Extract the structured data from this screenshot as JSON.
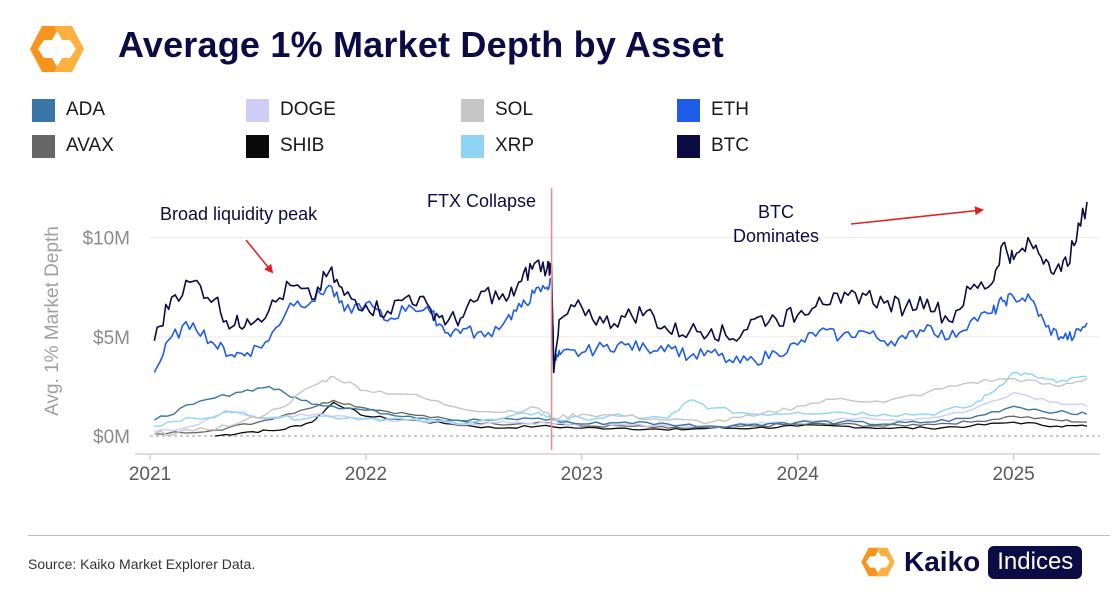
{
  "header": {
    "title": "Average 1% Market Depth by Asset"
  },
  "legend": [
    {
      "label": "ADA",
      "color": "#3a77a8"
    },
    {
      "label": "DOGE",
      "color": "#cfcdf6"
    },
    {
      "label": "SOL",
      "color": "#c6c6c6"
    },
    {
      "label": "ETH",
      "color": "#1f5ce8"
    },
    {
      "label": "AVAX",
      "color": "#666666"
    },
    {
      "label": "SHIB",
      "color": "#0a0a0a"
    },
    {
      "label": "XRP",
      "color": "#8fd4f5"
    },
    {
      "label": "BTC",
      "color": "#0b0b45"
    }
  ],
  "footer": {
    "source": "Source: Kaiko Market Explorer Data.",
    "brand_name": "Kaiko",
    "brand_badge": "Indices"
  },
  "chart_data": {
    "type": "line",
    "ylabel": "Avg. 1% Market Depth",
    "xlabel": "",
    "ylim": [
      0,
      12000000
    ],
    "xlim": [
      2021.0,
      2025.4
    ],
    "y_ticks": [
      {
        "value": 0,
        "label": "$0M"
      },
      {
        "value": 5000000,
        "label": "$5M"
      },
      {
        "value": 10000000,
        "label": "$10M"
      }
    ],
    "x_ticks": [
      {
        "value": 2021,
        "label": "2021"
      },
      {
        "value": 2022,
        "label": "2022"
      },
      {
        "value": 2023,
        "label": "2023"
      },
      {
        "value": 2024,
        "label": "2024"
      },
      {
        "value": 2025,
        "label": "2025"
      }
    ],
    "grid": "horizontal",
    "legend_position": "top",
    "annotations": [
      {
        "text": "Broad liquidity peak",
        "color": "#0b0b45"
      },
      {
        "text": "FTX Collapse",
        "color": "#0b0b45"
      },
      {
        "text": "BTC",
        "color": "#0b0b45"
      },
      {
        "text": "Dominates",
        "color": "#0b0b45"
      }
    ],
    "event_line": {
      "x": 2022.86,
      "color": "#f08a8a"
    },
    "series": [
      {
        "name": "BTC",
        "color": "#0b0b45",
        "width": 1.6,
        "x": [
          2021.02,
          2021.1,
          2021.2,
          2021.3,
          2021.38,
          2021.45,
          2021.55,
          2021.65,
          2021.75,
          2021.83,
          2021.9,
          2022.0,
          2022.1,
          2022.2,
          2022.3,
          2022.38,
          2022.45,
          2022.55,
          2022.65,
          2022.72,
          2022.78,
          2022.84,
          2022.86,
          2022.87,
          2022.9,
          2023.0,
          2023.1,
          2023.2,
          2023.3,
          2023.4,
          2023.5,
          2023.6,
          2023.7,
          2023.8,
          2023.9,
          2024.0,
          2024.1,
          2024.2,
          2024.3,
          2024.4,
          2024.5,
          2024.6,
          2024.7,
          2024.8,
          2024.9,
          2024.95,
          2025.0,
          2025.08,
          2025.15,
          2025.22,
          2025.28,
          2025.34
        ],
        "y": [
          4800000,
          7000000,
          7800000,
          6900000,
          5500000,
          5900000,
          6300000,
          7600000,
          6900000,
          8300000,
          7100000,
          6600000,
          6300000,
          7100000,
          6400000,
          5800000,
          6000000,
          7300000,
          6800000,
          7800000,
          8700000,
          8500000,
          8600000,
          3200000,
          5900000,
          6500000,
          5700000,
          6000000,
          6300000,
          5300000,
          5300000,
          5400000,
          4900000,
          5900000,
          5900000,
          6100000,
          7000000,
          6700000,
          7200000,
          6700000,
          6500000,
          6900000,
          5800000,
          7400000,
          7700000,
          9700000,
          8900000,
          9700000,
          8900000,
          8300000,
          9600000,
          11800000
        ]
      },
      {
        "name": "ETH",
        "color": "#1f5ce8",
        "width": 1.6,
        "x": [
          2021.02,
          2021.1,
          2021.2,
          2021.3,
          2021.38,
          2021.45,
          2021.55,
          2021.65,
          2021.75,
          2021.83,
          2021.9,
          2022.0,
          2022.1,
          2022.2,
          2022.3,
          2022.38,
          2022.45,
          2022.55,
          2022.65,
          2022.72,
          2022.78,
          2022.84,
          2022.86,
          2022.87,
          2022.9,
          2023.0,
          2023.1,
          2023.2,
          2023.3,
          2023.4,
          2023.5,
          2023.6,
          2023.7,
          2023.8,
          2023.9,
          2024.0,
          2024.1,
          2024.2,
          2024.3,
          2024.4,
          2024.5,
          2024.6,
          2024.7,
          2024.8,
          2024.9,
          2024.95,
          2025.0,
          2025.08,
          2025.15,
          2025.22,
          2025.28,
          2025.34
        ],
        "y": [
          3200000,
          5000000,
          5700000,
          4600000,
          4100000,
          4200000,
          4800000,
          6700000,
          6800000,
          7600000,
          6300000,
          6700000,
          5800000,
          6600000,
          6200000,
          5200000,
          5400000,
          5000000,
          5900000,
          6500000,
          7200000,
          7500000,
          7800000,
          3700000,
          4100000,
          4200000,
          4500000,
          4600000,
          4400000,
          4600000,
          4000000,
          4200000,
          3700000,
          3800000,
          4200000,
          4600000,
          5300000,
          5000000,
          5300000,
          4800000,
          4900000,
          5600000,
          4900000,
          5800000,
          6200000,
          6800000,
          7000000,
          6900000,
          5500000,
          5000000,
          5000000,
          5700000
        ]
      },
      {
        "name": "SOL",
        "color": "#c6c6c6",
        "width": 1.4,
        "x": [
          2021.02,
          2021.2,
          2021.4,
          2021.6,
          2021.75,
          2021.85,
          2022.0,
          2022.2,
          2022.4,
          2022.6,
          2022.8,
          2022.87,
          2023.0,
          2023.2,
          2023.4,
          2023.6,
          2023.8,
          2024.0,
          2024.2,
          2024.4,
          2024.6,
          2024.8,
          2025.0,
          2025.2,
          2025.34
        ],
        "y": [
          100000,
          250000,
          600000,
          1400000,
          2500000,
          3000000,
          2300000,
          2100000,
          1500000,
          1200000,
          1400000,
          900000,
          1100000,
          1000000,
          800000,
          700000,
          1000000,
          1500000,
          1900000,
          1700000,
          2200000,
          2700000,
          2900000,
          2500000,
          2900000
        ]
      },
      {
        "name": "XRP",
        "color": "#8fd4f5",
        "width": 1.4,
        "x": [
          2021.02,
          2021.2,
          2021.4,
          2021.6,
          2021.8,
          2022.0,
          2022.2,
          2022.4,
          2022.6,
          2022.8,
          2022.87,
          2023.0,
          2023.2,
          2023.4,
          2023.5,
          2023.6,
          2023.8,
          2024.0,
          2024.2,
          2024.4,
          2024.6,
          2024.8,
          2024.9,
          2025.0,
          2025.1,
          2025.2,
          2025.34
        ],
        "y": [
          500000,
          900000,
          1200000,
          900000,
          1000000,
          900000,
          800000,
          700000,
          800000,
          1200000,
          800000,
          900000,
          1000000,
          900000,
          1800000,
          1400000,
          1100000,
          1200000,
          1200000,
          1100000,
          1100000,
          1500000,
          2200000,
          3200000,
          3000000,
          2700000,
          3000000
        ]
      },
      {
        "name": "ADA",
        "color": "#3a77a8",
        "width": 1.4,
        "x": [
          2021.02,
          2021.2,
          2021.4,
          2021.55,
          2021.7,
          2021.85,
          2022.0,
          2022.2,
          2022.4,
          2022.6,
          2022.8,
          2023.0,
          2023.2,
          2023.4,
          2023.6,
          2023.8,
          2024.0,
          2024.2,
          2024.4,
          2024.6,
          2024.8,
          2025.0,
          2025.2,
          2025.34
        ],
        "y": [
          800000,
          1600000,
          2200000,
          2500000,
          1800000,
          1500000,
          1300000,
          1000000,
          800000,
          800000,
          900000,
          600000,
          700000,
          600000,
          500000,
          600000,
          700000,
          700000,
          600000,
          700000,
          900000,
          1500000,
          1200000,
          1100000
        ]
      },
      {
        "name": "DOGE",
        "color": "#cfcdf6",
        "width": 1.4,
        "x": [
          2021.02,
          2021.2,
          2021.35,
          2021.5,
          2021.7,
          2021.9,
          2022.1,
          2022.3,
          2022.5,
          2022.7,
          2022.87,
          2023.0,
          2023.2,
          2023.4,
          2023.6,
          2023.8,
          2024.0,
          2024.2,
          2024.4,
          2024.6,
          2024.8,
          2025.0,
          2025.2,
          2025.34
        ],
        "y": [
          200000,
          500000,
          1300000,
          900000,
          1100000,
          1000000,
          800000,
          700000,
          600000,
          700000,
          600000,
          600000,
          600000,
          500000,
          500000,
          600000,
          700000,
          900000,
          800000,
          900000,
          1300000,
          2200000,
          1700000,
          1500000
        ]
      },
      {
        "name": "AVAX",
        "color": "#666666",
        "width": 1.3,
        "x": [
          2021.02,
          2021.3,
          2021.5,
          2021.7,
          2021.85,
          2022.0,
          2022.2,
          2022.4,
          2022.6,
          2022.8,
          2023.0,
          2023.2,
          2023.4,
          2023.6,
          2023.8,
          2024.0,
          2024.2,
          2024.4,
          2024.6,
          2024.8,
          2025.0,
          2025.2,
          2025.34
        ],
        "y": [
          100000,
          300000,
          700000,
          1300000,
          1800000,
          1400000,
          1100000,
          800000,
          600000,
          700000,
          500000,
          500000,
          400000,
          400000,
          500000,
          600000,
          600000,
          500000,
          600000,
          700000,
          1000000,
          800000,
          700000
        ]
      },
      {
        "name": "SHIB",
        "color": "#0a0a0a",
        "width": 1.3,
        "x": [
          2021.3,
          2021.45,
          2021.6,
          2021.75,
          2021.85,
          2022.0,
          2022.2,
          2022.4,
          2022.6,
          2022.8,
          2023.0,
          2023.2,
          2023.4,
          2023.6,
          2023.8,
          2024.0,
          2024.2,
          2024.4,
          2024.6,
          2024.8,
          2025.0,
          2025.2,
          2025.34
        ],
        "y": [
          0,
          200000,
          300000,
          700000,
          1700000,
          1000000,
          800000,
          600000,
          400000,
          500000,
          400000,
          400000,
          300000,
          400000,
          400000,
          500000,
          500000,
          400000,
          400000,
          500000,
          700000,
          500000,
          500000
        ]
      }
    ]
  }
}
